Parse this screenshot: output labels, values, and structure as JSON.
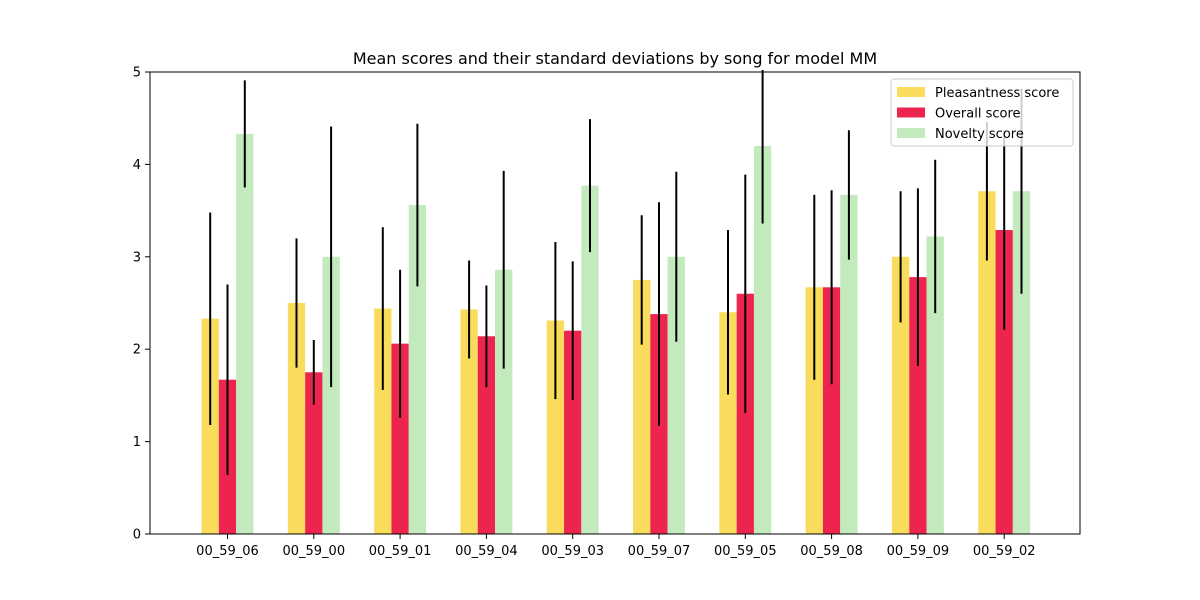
{
  "chart_data": {
    "type": "bar",
    "title": "Mean scores and their standard deviations by song for model MM",
    "xlabel": "",
    "ylabel": "",
    "ylim": [
      0,
      5
    ],
    "yticks": [
      "0",
      "1",
      "2",
      "3",
      "4",
      "5"
    ],
    "grid": false,
    "legend_position": "top-right",
    "categories": [
      "00_59_06",
      "00_59_00",
      "00_59_01",
      "00_59_04",
      "00_59_03",
      "00_59_07",
      "00_59_05",
      "00_59_08",
      "00_59_09",
      "00_59_02"
    ],
    "series": [
      {
        "name": "Pleasantness score",
        "color": "#f9dc5c",
        "values": [
          2.33,
          2.5,
          2.44,
          2.43,
          2.31,
          2.75,
          2.4,
          2.67,
          3.0,
          3.71
        ],
        "errors": [
          1.15,
          0.7,
          0.88,
          0.53,
          0.85,
          0.7,
          0.89,
          1.0,
          0.71,
          0.75
        ]
      },
      {
        "name": "Overall score",
        "color": "#ed254e",
        "values": [
          1.67,
          1.75,
          2.06,
          2.14,
          2.2,
          2.38,
          2.6,
          2.67,
          2.78,
          3.29
        ],
        "errors": [
          1.03,
          0.35,
          0.8,
          0.55,
          0.75,
          1.21,
          1.29,
          1.05,
          0.96,
          1.08
        ]
      },
      {
        "name": "Novelty score",
        "color": "#c2eabd",
        "values": [
          4.33,
          3.0,
          3.56,
          2.86,
          3.77,
          3.0,
          4.2,
          3.67,
          3.22,
          3.71
        ],
        "errors": [
          0.58,
          1.41,
          0.88,
          1.07,
          0.72,
          0.92,
          0.84,
          0.7,
          0.83,
          1.11
        ]
      }
    ]
  }
}
